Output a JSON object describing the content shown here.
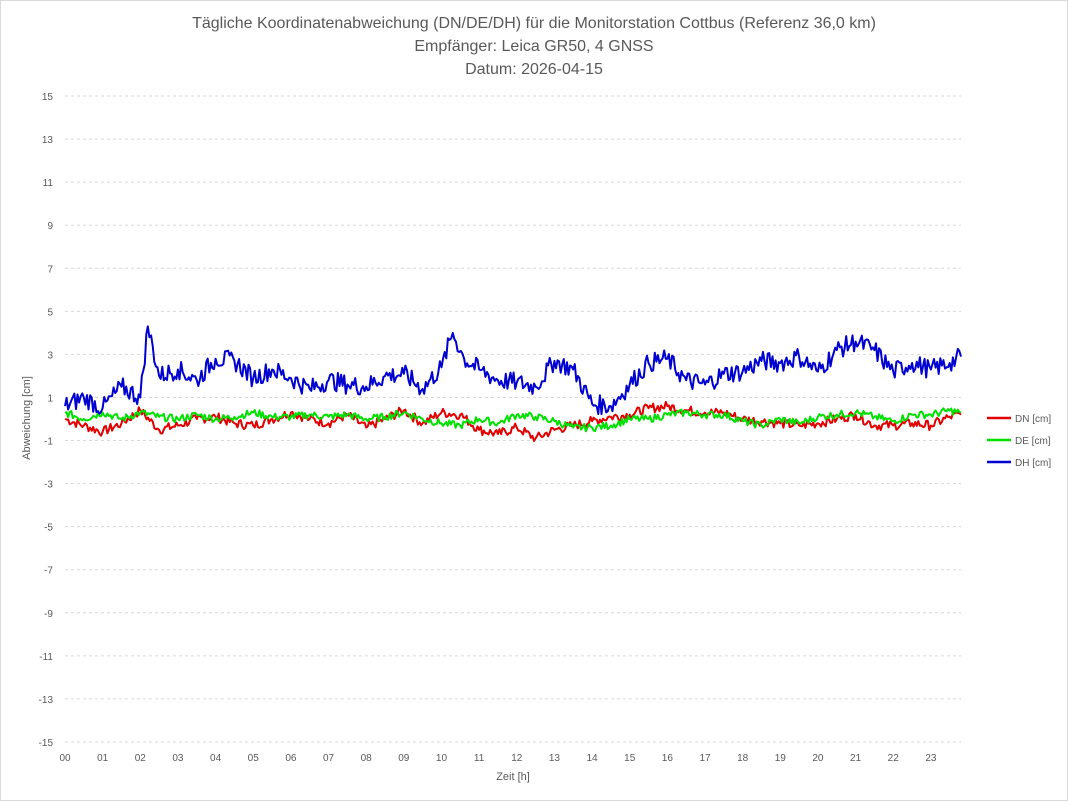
{
  "chart_data": {
    "type": "line",
    "title": [
      "Tägliche Koordinatenabweichung (DN/DE/DH) für die Monitorstation Cottbus (Referenz 36,0 km)",
      "Empfänger: Leica GR50, 4 GNSS",
      "Datum: 2026-04-15"
    ],
    "xlabel": "Zeit [h]",
    "ylabel": "Abweichung [cm]",
    "x_ticks": [
      "00",
      "01",
      "02",
      "03",
      "04",
      "05",
      "06",
      "07",
      "08",
      "09",
      "10",
      "11",
      "12",
      "13",
      "14",
      "15",
      "16",
      "17",
      "18",
      "19",
      "20",
      "21",
      "22",
      "23"
    ],
    "y_ticks": [
      "15",
      "13",
      "11",
      "9",
      "7",
      "5",
      "3",
      "1",
      "-1",
      "-3",
      "-5",
      "-7",
      "-9",
      "-11",
      "-13",
      "-15"
    ],
    "xlim": [
      0,
      23.8
    ],
    "ylim": [
      -15,
      15
    ],
    "grid": "horizontal dashed",
    "legend_position": "right",
    "series": [
      {
        "name": "DN [cm]",
        "color": "#e00000",
        "x": [
          0,
          0.5,
          1,
          1.5,
          2,
          2.5,
          3,
          3.5,
          4,
          4.5,
          5,
          5.5,
          6,
          6.5,
          7,
          7.5,
          8,
          8.5,
          9,
          9.5,
          10,
          10.5,
          11,
          11.5,
          12,
          12.5,
          13,
          13.5,
          14,
          14.5,
          15,
          15.5,
          16,
          16.5,
          17,
          17.5,
          18,
          18.5,
          19,
          19.5,
          20,
          20.5,
          21,
          21.5,
          22,
          22.5,
          23,
          23.5,
          23.8
        ],
        "values": [
          0,
          -0.3,
          -0.6,
          -0.2,
          0.4,
          -0.5,
          -0.3,
          0,
          0.1,
          -0.2,
          -0.3,
          0,
          0.3,
          0,
          -0.2,
          0.2,
          -0.4,
          0,
          0.4,
          -0.2,
          0.3,
          0.2,
          -0.5,
          -0.7,
          -0.4,
          -0.9,
          -0.5,
          -0.3,
          -0.1,
          0.1,
          0.2,
          0.5,
          0.6,
          0.4,
          0.3,
          0.3,
          0,
          -0.1,
          -0.2,
          -0.3,
          -0.2,
          0,
          0.2,
          -0.3,
          -0.3,
          -0.2,
          -0.3,
          0.1,
          0.2
        ]
      },
      {
        "name": "DE [cm]",
        "color": "#00e000",
        "x": [
          0,
          0.5,
          1,
          1.5,
          2,
          2.5,
          3,
          3.5,
          4,
          4.5,
          5,
          5.5,
          6,
          6.5,
          7,
          7.5,
          8,
          8.5,
          9,
          9.5,
          10,
          10.5,
          11,
          11.5,
          12,
          12.5,
          13,
          13.5,
          14,
          14.5,
          15,
          15.5,
          16,
          16.5,
          17,
          17.5,
          18,
          18.5,
          19,
          19.5,
          20,
          20.5,
          21,
          21.5,
          22,
          22.5,
          23,
          23.5,
          23.8
        ],
        "values": [
          0.3,
          0,
          0.3,
          0,
          0.3,
          0.1,
          0,
          0.2,
          0,
          0.1,
          0.3,
          0.1,
          0.1,
          0.2,
          0.1,
          0.2,
          0,
          0.1,
          0.3,
          0,
          -0.2,
          -0.3,
          0,
          -0.2,
          0.2,
          0.1,
          -0.1,
          -0.4,
          -0.4,
          -0.3,
          0,
          0,
          0.2,
          0.3,
          0.2,
          0.2,
          -0.1,
          -0.3,
          0,
          -0.2,
          0.1,
          0.2,
          0.3,
          0.1,
          -0.1,
          0.2,
          0.2,
          0.4,
          0.3
        ]
      },
      {
        "name": "DH [cm]",
        "color": "#0000d0",
        "x": [
          0,
          0.5,
          1,
          1.5,
          2,
          2.2,
          2.5,
          3,
          3.5,
          4,
          4.5,
          5,
          5.5,
          6,
          6.5,
          7,
          7.5,
          8,
          8.5,
          9,
          9.5,
          10,
          10.3,
          10.6,
          11,
          11.5,
          12,
          12.5,
          13,
          13.5,
          14,
          14.5,
          15,
          15.5,
          16,
          16.5,
          17,
          17.5,
          18,
          18.5,
          19,
          19.5,
          20,
          20.5,
          21,
          21.5,
          22,
          22.5,
          23,
          23.5,
          23.8
        ],
        "values": [
          0.6,
          1,
          0.5,
          1.5,
          1,
          4.3,
          2,
          2.3,
          1.8,
          2.8,
          2.7,
          1.9,
          2.3,
          1.9,
          1.4,
          1.8,
          1.6,
          1.5,
          2,
          2.1,
          1.4,
          2.4,
          4,
          2.8,
          2.3,
          1.8,
          1.7,
          1.5,
          2.7,
          2.3,
          0.7,
          0.6,
          1.6,
          2.6,
          2.8,
          1.8,
          1.6,
          2.1,
          2.2,
          2.7,
          2.6,
          2.9,
          2.2,
          3.2,
          3.6,
          3.2,
          2.2,
          2.6,
          2.3,
          2.6,
          2.9
        ]
      }
    ]
  }
}
